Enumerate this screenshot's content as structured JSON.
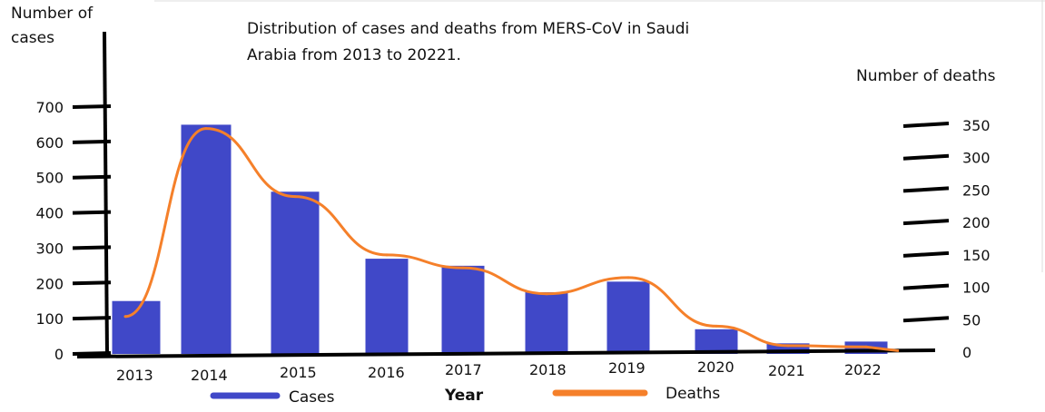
{
  "chart_data": {
    "type": "bar+line",
    "title": "Distribution of cases and deaths from MERS-CoV in Saudi Arabia from 2013 to 20221.",
    "title_lines": [
      "Distribution of cases and deaths from MERS-CoV in Saudi",
      "Arabia from 2013 to 20221."
    ],
    "xlabel": "Year",
    "ylabel_left_lines": [
      "Number of",
      "cases"
    ],
    "ylabel_right": "Number of deaths",
    "categories": [
      "2013",
      "2014",
      "2015",
      "2016",
      "2017",
      "2018",
      "2019",
      "2020",
      "2021",
      "2022"
    ],
    "left_ticks": [
      "0",
      "100",
      "200",
      "300",
      "400",
      "500",
      "600",
      "700"
    ],
    "right_ticks": [
      "0",
      "50",
      "100",
      "150",
      "200",
      "250",
      "300",
      "350"
    ],
    "ylim_left": [
      0,
      700
    ],
    "ylim_right": [
      0,
      350
    ],
    "series": [
      {
        "name": "Cases",
        "type": "bar",
        "axis": "left",
        "color": "#4048c8",
        "values": [
          150,
          650,
          460,
          270,
          250,
          175,
          205,
          70,
          30,
          35
        ]
      },
      {
        "name": "Deaths",
        "type": "line",
        "axis": "right",
        "color": "#f5802a",
        "values": [
          55,
          345,
          240,
          150,
          130,
          90,
          115,
          40,
          10,
          8
        ]
      }
    ],
    "legend": [
      {
        "label": "Cases",
        "color": "#4048c8"
      },
      {
        "label": "Deaths",
        "color": "#f5802a"
      }
    ],
    "legend_position": "bottom",
    "grid": false
  }
}
